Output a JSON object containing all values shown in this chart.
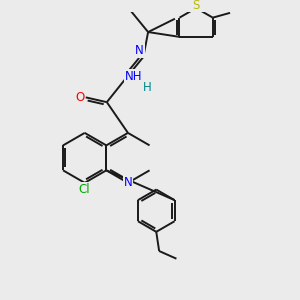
{
  "background_color": "#ebebeb",
  "atom_colors": {
    "N": "#0000ff",
    "O": "#ff0000",
    "S": "#bbbb00",
    "Cl": "#00aa00",
    "H": "#008888",
    "C": "#1a1a1a"
  },
  "bond_color": "#1a1a1a",
  "font_size": 8.5,
  "figsize": [
    3.0,
    3.0
  ],
  "dpi": 100
}
